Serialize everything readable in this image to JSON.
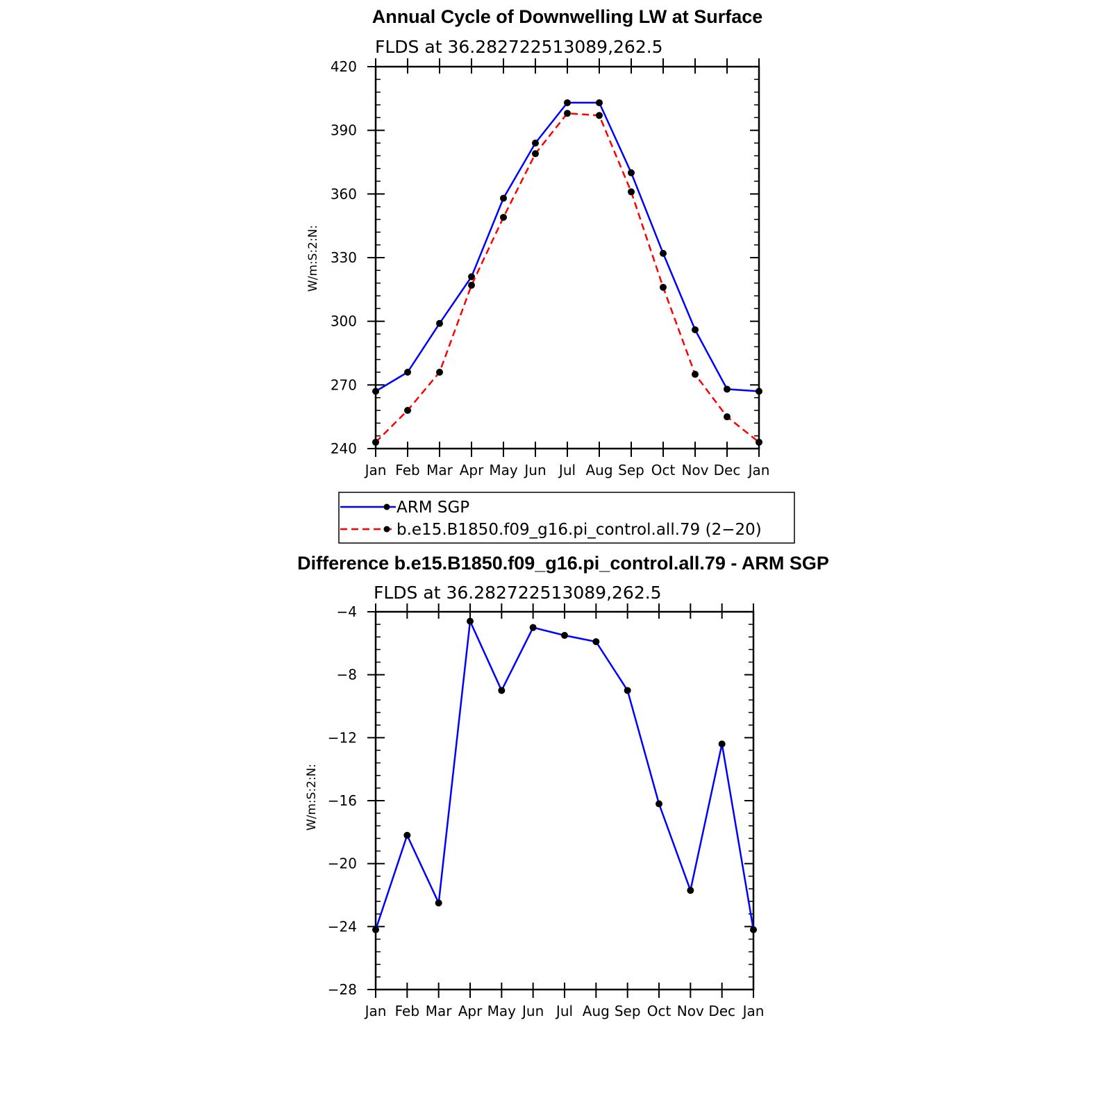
{
  "chart_data": [
    {
      "type": "line",
      "title": "Annual Cycle of Downwelling LW at Surface",
      "subtitle": "FLDS at 36.282722513089,262.5",
      "ylabel": "W/m:S:2:N:",
      "xlabel": "",
      "ylim": [
        240,
        420
      ],
      "yticks": [
        "240",
        "270",
        "300",
        "330",
        "360",
        "390",
        "420"
      ],
      "categories": [
        "Jan",
        "Feb",
        "Mar",
        "Apr",
        "May",
        "Jun",
        "Jul",
        "Aug",
        "Sep",
        "Oct",
        "Nov",
        "Dec",
        "Jan"
      ],
      "series": [
        {
          "name": "ARM SGP",
          "color": "#0000ff",
          "style": "solid",
          "values": [
            267,
            276,
            299,
            321,
            358,
            384,
            403,
            403,
            370,
            332,
            296,
            268,
            267
          ]
        },
        {
          "name": "b.e15.B1850.f09_g16.pi_control.all.79 (2−20)",
          "color": "#ff0000",
          "style": "dashed",
          "values": [
            243,
            258,
            276,
            317,
            349,
            379,
            398,
            397,
            361,
            316,
            275,
            255,
            243
          ]
        }
      ],
      "legend": "below"
    },
    {
      "type": "line",
      "title": "Difference b.e15.B1850.f09_g16.pi_control.all.79 - ARM SGP",
      "subtitle": "FLDS at 36.282722513089,262.5",
      "ylabel": "W/m:S:2:N:",
      "xlabel": "",
      "ylim": [
        -28,
        -4
      ],
      "yticks": [
        "−28",
        "−24",
        "−20",
        "−16",
        "−12",
        "−8",
        "−4"
      ],
      "categories": [
        "Jan",
        "Feb",
        "Mar",
        "Apr",
        "May",
        "Jun",
        "Jul",
        "Aug",
        "Sep",
        "Oct",
        "Nov",
        "Dec",
        "Jan"
      ],
      "series": [
        {
          "color": "#0000ff",
          "style": "solid",
          "values": [
            -24.2,
            -18.2,
            -22.5,
            -4.6,
            -9.0,
            -5.0,
            -5.5,
            -5.9,
            -9.0,
            -16.2,
            -21.7,
            -12.4,
            -24.2
          ]
        }
      ]
    }
  ]
}
